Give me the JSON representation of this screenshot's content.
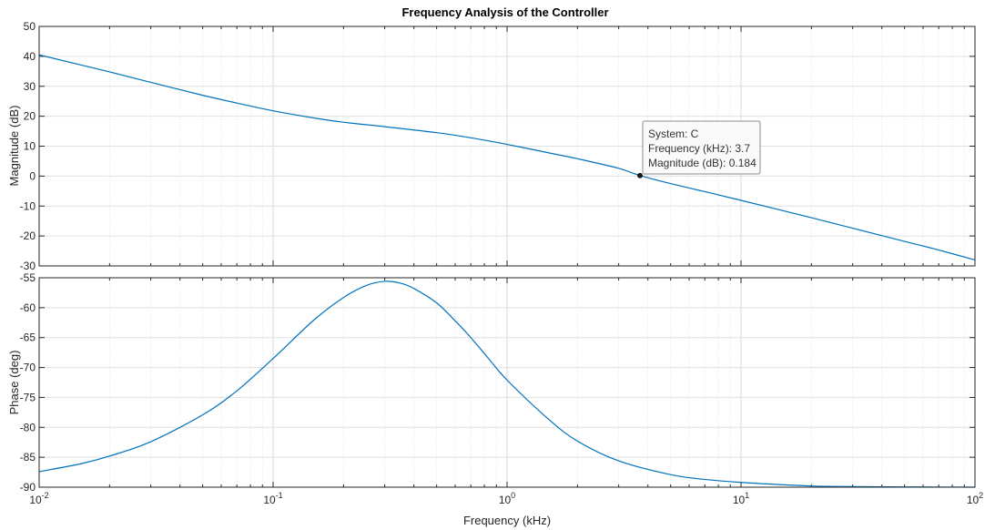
{
  "chart_data": {
    "type": "line",
    "title": "Frequency Analysis of the Controller",
    "xlabel": "Frequency  (kHz)",
    "xscale": "log",
    "xlim": [
      0.01,
      100
    ],
    "x_ticks": [
      {
        "value": 0.01,
        "base": "10",
        "exp": "-2"
      },
      {
        "value": 0.1,
        "base": "10",
        "exp": "-1"
      },
      {
        "value": 1,
        "base": "10",
        "exp": "0"
      },
      {
        "value": 10,
        "base": "10",
        "exp": "1"
      },
      {
        "value": 100,
        "base": "10",
        "exp": "2"
      }
    ],
    "grid": true,
    "line_color": "#0072bd",
    "panels": [
      {
        "name": "magnitude",
        "ylabel": "Magnitude (dB)",
        "ylim": [
          -30,
          50
        ],
        "y_ticks": [
          "50",
          "40",
          "30",
          "20",
          "10",
          "0",
          "-10",
          "-20",
          "-30"
        ],
        "series": [
          {
            "x": [
              0.01,
              0.02,
              0.03,
              0.05,
              0.07,
              0.1,
              0.15,
              0.2,
              0.3,
              0.5,
              0.7,
              1,
              1.5,
              2,
              3,
              3.7,
              5,
              7,
              10,
              20,
              30,
              50,
              70,
              100
            ],
            "y": [
              40.5,
              34.8,
              31.3,
              27.0,
              24.4,
              21.8,
              19.4,
              18.0,
              16.5,
              14.5,
              12.8,
              10.6,
              7.8,
              5.8,
              2.6,
              0.184,
              -2.5,
              -5.2,
              -8.1,
              -13.9,
              -17.4,
              -21.8,
              -24.7,
              -28.0
            ]
          }
        ]
      },
      {
        "name": "phase",
        "ylabel": "Phase (deg)",
        "ylim": [
          -90,
          -55
        ],
        "y_ticks": [
          "-55",
          "-60",
          "-65",
          "-70",
          "-75",
          "-80",
          "-85",
          "-90"
        ],
        "series": [
          {
            "x": [
              0.01,
              0.015,
              0.02,
              0.03,
              0.05,
              0.07,
              0.1,
              0.15,
              0.2,
              0.25,
              0.3,
              0.35,
              0.4,
              0.5,
              0.6,
              0.7,
              0.85,
              1,
              1.5,
              2,
              3,
              5,
              7,
              10,
              20,
              30,
              50,
              100
            ],
            "y": [
              -87.4,
              -86.1,
              -84.8,
              -82.4,
              -77.9,
              -73.9,
              -68.5,
              -62.0,
              -58.3,
              -56.3,
              -55.6,
              -55.9,
              -56.8,
              -59.2,
              -62.2,
              -65.0,
              -68.9,
              -72.1,
              -78.6,
              -82.3,
              -85.6,
              -87.9,
              -88.7,
              -89.2,
              -89.8,
              -89.9,
              -89.95,
              -90.0
            ]
          }
        ]
      }
    ],
    "datatip": {
      "lines": [
        "System: C",
        "Frequency (kHz): 3.7",
        "Magnitude (dB): 0.184"
      ],
      "x": 3.7,
      "y": 0.184
    }
  }
}
